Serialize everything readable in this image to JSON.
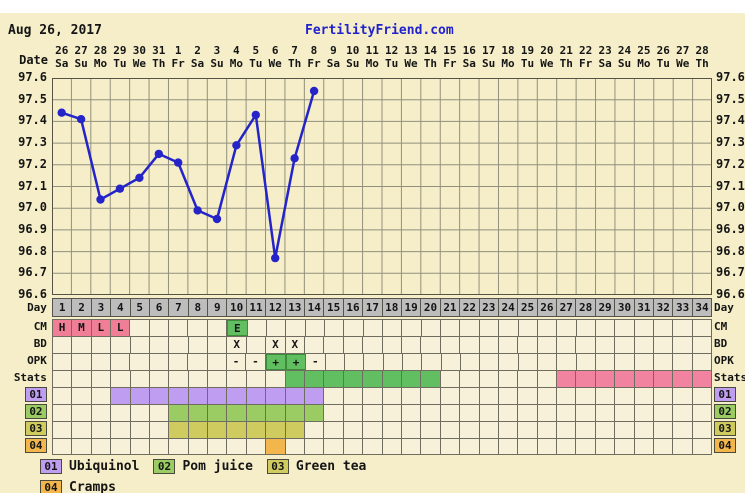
{
  "header": {
    "date_label": "Aug 26, 2017",
    "site_label": "FertilityFriend.com",
    "site_color": "#2222cc"
  },
  "axis": {
    "date_row_label": "Date",
    "dates": [
      "26",
      "27",
      "28",
      "29",
      "30",
      "31",
      "1",
      "2",
      "3",
      "4",
      "5",
      "6",
      "7",
      "8",
      "9",
      "10",
      "11",
      "12",
      "13",
      "14",
      "15",
      "16",
      "17",
      "18",
      "19",
      "20",
      "21",
      "22",
      "23",
      "24",
      "25",
      "26",
      "27",
      "28"
    ],
    "weekdays": [
      "Sa",
      "Su",
      "Mo",
      "Tu",
      "We",
      "Th",
      "Fr",
      "Sa",
      "Su",
      "Mo",
      "Tu",
      "We",
      "Th",
      "Fr",
      "Sa",
      "Su",
      "Mo",
      "Tu",
      "We",
      "Th",
      "Fr",
      "Sa",
      "Su",
      "Mo",
      "Tu",
      "We",
      "Th",
      "Fr",
      "Sa",
      "Su",
      "Mo",
      "Tu",
      "We",
      "Th"
    ],
    "y_ticks": [
      "97.6",
      "97.5",
      "97.4",
      "97.3",
      "97.2",
      "97.1",
      "97.0",
      "96.9",
      "96.8",
      "96.7",
      "96.6"
    ]
  },
  "chart_data": {
    "type": "line",
    "title": "",
    "x_label": "Day",
    "x": [
      1,
      2,
      3,
      4,
      5,
      6,
      7,
      8,
      9,
      10,
      11,
      12,
      13,
      14
    ],
    "series": [
      {
        "name": "temperature",
        "values": [
          97.44,
          97.41,
          97.04,
          97.09,
          97.14,
          97.25,
          97.21,
          96.99,
          96.95,
          97.29,
          97.43,
          96.77,
          97.23,
          97.54
        ]
      }
    ],
    "ylim": [
      96.6,
      97.6
    ],
    "y_tick_step": 0.1,
    "x_total_days": 34,
    "grid": true,
    "legend_position": "none",
    "line_color": "#2424c8",
    "marker": "circle"
  },
  "rows": {
    "day": {
      "label": "Day",
      "values": [
        "1",
        "2",
        "3",
        "4",
        "5",
        "6",
        "7",
        "8",
        "9",
        "10",
        "11",
        "12",
        "13",
        "14",
        "15",
        "16",
        "17",
        "18",
        "19",
        "20",
        "21",
        "22",
        "23",
        "24",
        "25",
        "26",
        "27",
        "28",
        "29",
        "30",
        "31",
        "32",
        "33",
        "34"
      ]
    },
    "cm": {
      "label": "CM",
      "entries": [
        {
          "day": 1,
          "text": "H",
          "bg": "#ef7e96"
        },
        {
          "day": 2,
          "text": "M",
          "bg": "#ef7e96"
        },
        {
          "day": 3,
          "text": "L",
          "bg": "#ef7e96"
        },
        {
          "day": 4,
          "text": "L",
          "bg": "#ef7e96"
        },
        {
          "day": 10,
          "text": "E",
          "bg": "#61bf61",
          "border": "#3c8c3c"
        }
      ]
    },
    "bd": {
      "label": "BD",
      "entries": [
        {
          "day": 10,
          "text": "X"
        },
        {
          "day": 12,
          "text": "X"
        },
        {
          "day": 13,
          "text": "X"
        }
      ]
    },
    "opk": {
      "label": "OPK",
      "entries": [
        {
          "day": 10,
          "text": "-"
        },
        {
          "day": 11,
          "text": "-"
        },
        {
          "day": 12,
          "text": "+",
          "bg": "#61bf61",
          "border": "#3c8c3c"
        },
        {
          "day": 13,
          "text": "+",
          "bg": "#61bf61",
          "border": "#3c8c3c"
        },
        {
          "day": 14,
          "text": "-"
        }
      ]
    },
    "stats": {
      "label": "Stats",
      "bars": [
        {
          "start_day": 13,
          "end_day": 20,
          "color": "#61bf61"
        },
        {
          "start_day": 27,
          "end_day": 34,
          "color": "#f283a0"
        }
      ]
    },
    "custom": [
      {
        "label": "01",
        "name": "Ubiquinol",
        "color": "#bf9df0",
        "start_day": 4,
        "end_day": 14
      },
      {
        "label": "02",
        "name": "Pom juice",
        "color": "#9bcb63",
        "start_day": 7,
        "end_day": 14
      },
      {
        "label": "03",
        "name": "Green tea",
        "color": "#cfcb5e",
        "start_day": 7,
        "end_day": 13
      },
      {
        "label": "04",
        "name": "Cramps",
        "color": "#f3b64d",
        "start_day": 12,
        "end_day": 12
      }
    ]
  },
  "legend": {
    "line1": [
      0,
      1,
      2
    ],
    "line2": [
      3
    ]
  },
  "colors": {
    "page_bg": "#f5eec9",
    "cell_bg": "#f7f1da",
    "day_row_bg": "#bdbdbd",
    "grid": "#92907d",
    "row_border": "#6f6d5f",
    "plot_border": "#565447"
  }
}
